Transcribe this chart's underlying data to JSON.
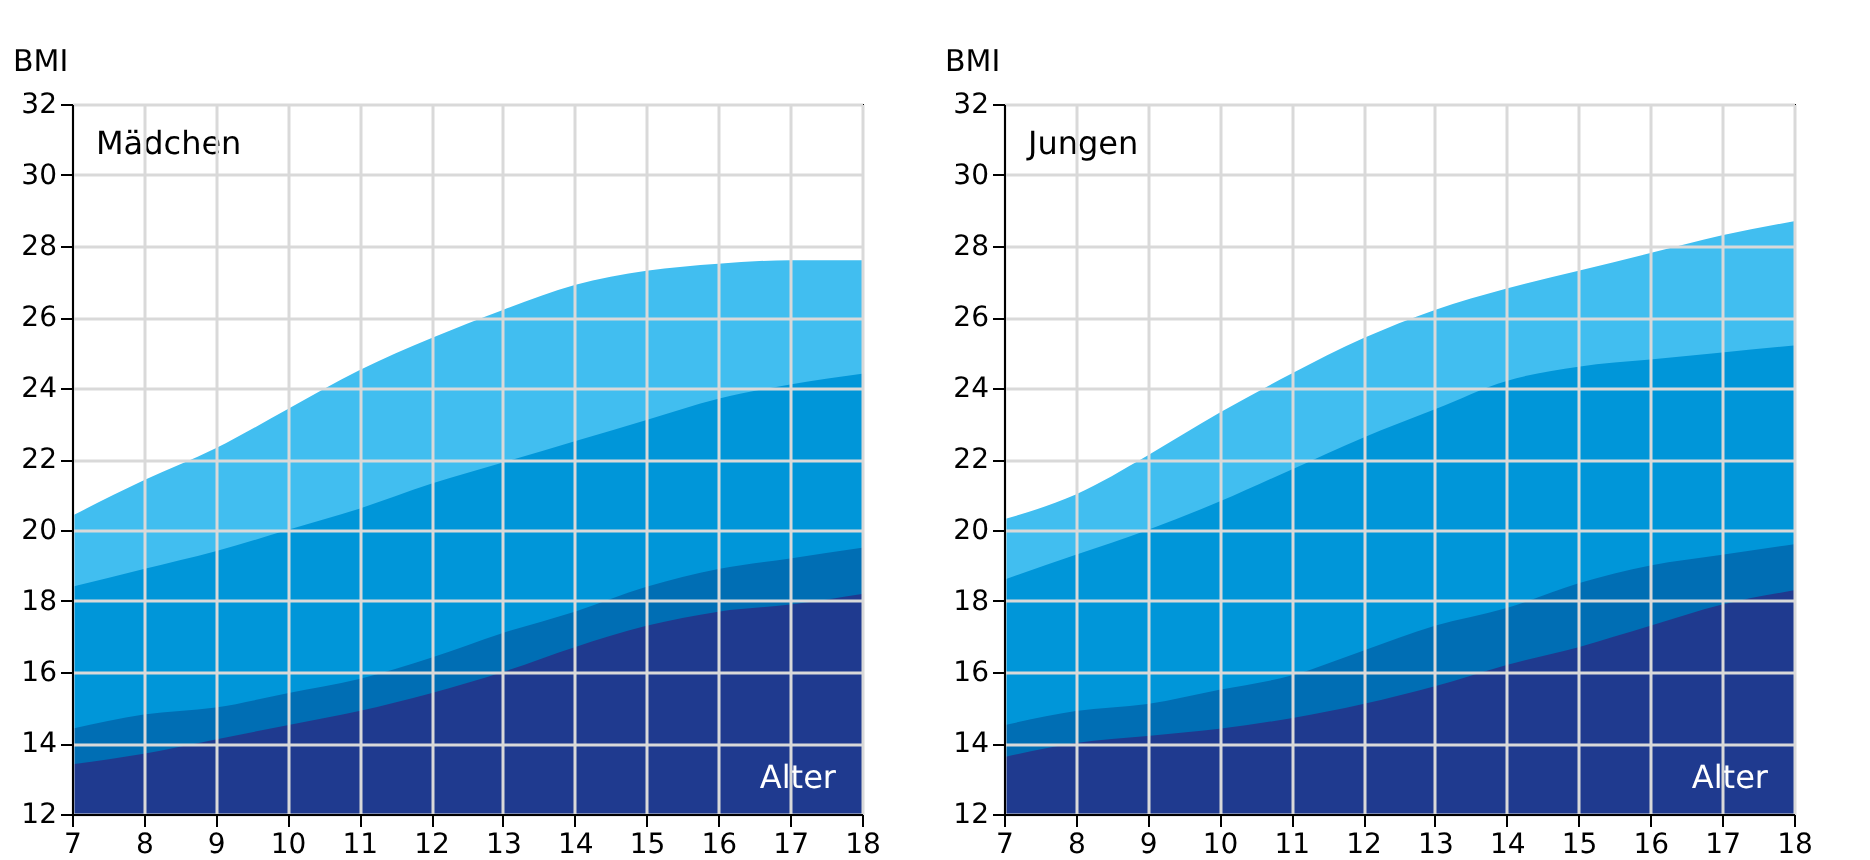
{
  "chart_data": [
    {
      "type": "area",
      "title": "Mädchen",
      "xlabel": "Alter",
      "ylabel": "BMI",
      "x": [
        7,
        8,
        9,
        10,
        11,
        12,
        13,
        14,
        15,
        16,
        17,
        18
      ],
      "xlim": [
        7,
        18
      ],
      "xticks": [
        7,
        8,
        9,
        10,
        11,
        12,
        13,
        14,
        15,
        16,
        17,
        18
      ],
      "ylim": [
        12,
        32
      ],
      "yticks": [
        12,
        14,
        16,
        18,
        20,
        22,
        24,
        26,
        28,
        30,
        32
      ],
      "grid": true,
      "series": [
        {
          "color": "#41bef0",
          "values": [
            20.4,
            21.4,
            22.3,
            23.4,
            24.5,
            25.4,
            26.2,
            26.9,
            27.3,
            27.5,
            27.6,
            27.6
          ]
        },
        {
          "color": "#0096d9",
          "values": [
            18.4,
            18.9,
            19.4,
            20.0,
            20.6,
            21.3,
            21.9,
            22.5,
            23.1,
            23.7,
            24.1,
            24.4
          ]
        },
        {
          "color": "#006eb4",
          "values": [
            14.4,
            14.8,
            15.0,
            15.4,
            15.8,
            16.4,
            17.1,
            17.7,
            18.4,
            18.9,
            19.2,
            19.5
          ]
        },
        {
          "color": "#1f3a8f",
          "values": [
            13.4,
            13.7,
            14.1,
            14.5,
            14.9,
            15.4,
            16.0,
            16.7,
            17.3,
            17.7,
            17.9,
            18.2
          ]
        }
      ]
    },
    {
      "type": "area",
      "title": "Jungen",
      "xlabel": "Alter",
      "ylabel": "BMI",
      "x": [
        7,
        8,
        9,
        10,
        11,
        12,
        13,
        14,
        15,
        16,
        17,
        18
      ],
      "xlim": [
        7,
        18
      ],
      "xticks": [
        7,
        8,
        9,
        10,
        11,
        12,
        13,
        14,
        15,
        16,
        17,
        18
      ],
      "ylim": [
        12,
        32
      ],
      "yticks": [
        12,
        14,
        16,
        18,
        20,
        22,
        24,
        26,
        28,
        30,
        32
      ],
      "grid": true,
      "series": [
        {
          "color": "#41bef0",
          "values": [
            20.3,
            21.0,
            22.1,
            23.3,
            24.4,
            25.4,
            26.2,
            26.8,
            27.3,
            27.8,
            28.3,
            28.7
          ]
        },
        {
          "color": "#0096d9",
          "values": [
            18.6,
            19.3,
            20.0,
            20.8,
            21.7,
            22.6,
            23.4,
            24.2,
            24.6,
            24.8,
            25.0,
            25.2
          ]
        },
        {
          "color": "#006eb4",
          "values": [
            14.5,
            14.9,
            15.1,
            15.5,
            15.9,
            16.6,
            17.3,
            17.8,
            18.5,
            19.0,
            19.3,
            19.6
          ]
        },
        {
          "color": "#1f3a8f",
          "values": [
            13.6,
            14.0,
            14.2,
            14.4,
            14.7,
            15.1,
            15.6,
            16.2,
            16.7,
            17.3,
            17.9,
            18.3
          ]
        }
      ]
    }
  ]
}
